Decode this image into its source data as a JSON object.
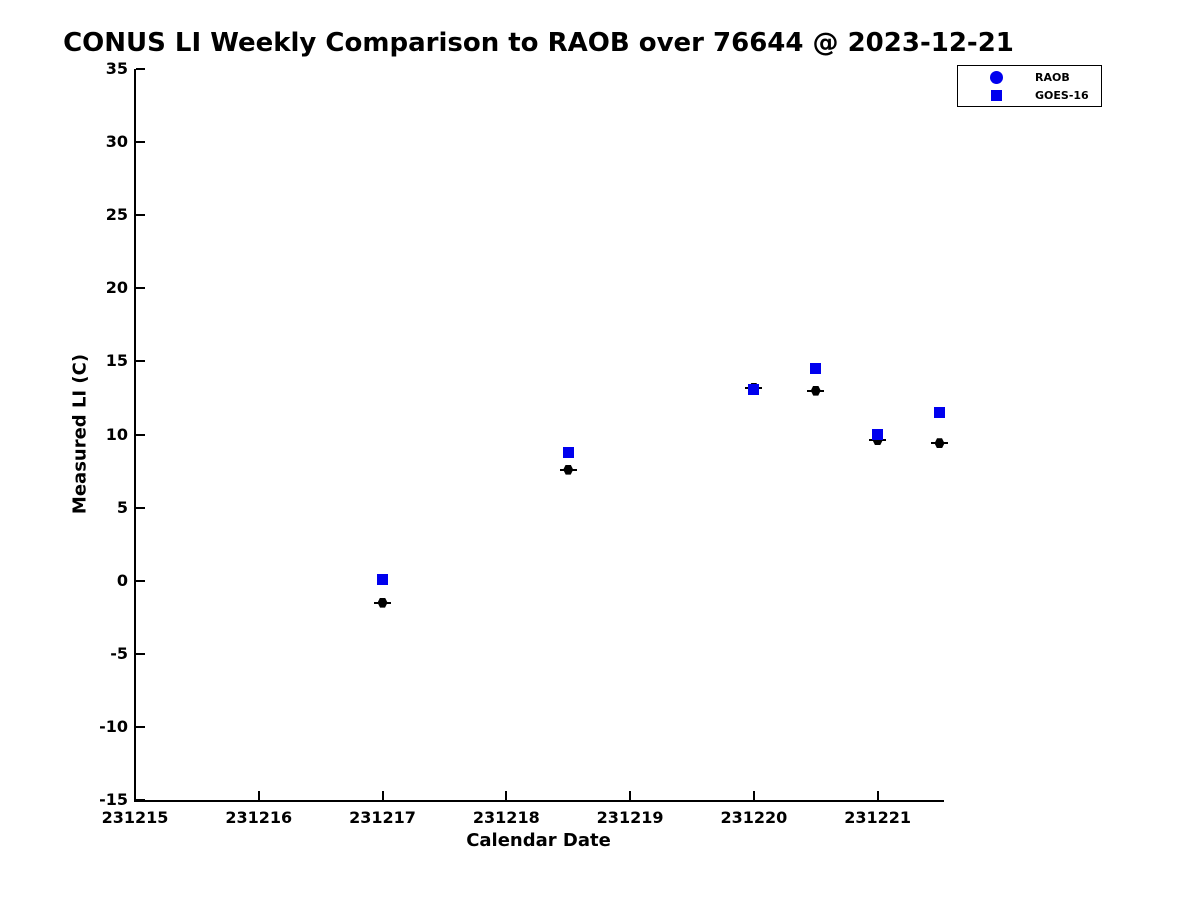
{
  "chart_data": {
    "type": "scatter",
    "title": "CONUS LI Weekly Comparison to RAOB over 76644 @ 2023-12-21",
    "xlabel": "Calendar Date",
    "ylabel": "Measured LI (C)",
    "xlim": [
      231215,
      231221.52
    ],
    "ylim": [
      -15,
      35
    ],
    "x_ticks": [
      231215,
      231216,
      231217,
      231218,
      231219,
      231220,
      231221
    ],
    "y_ticks": [
      -15,
      -10,
      -5,
      0,
      5,
      10,
      15,
      20,
      25,
      30,
      35
    ],
    "x": [
      231217,
      231218.5,
      231220,
      231220.5,
      231221,
      231221.5
    ],
    "series": [
      {
        "name": "RAOB",
        "marker": "hexagon",
        "plot_color": "#000000",
        "legend_color": "#0000ee",
        "values": [
          -1.5,
          7.6,
          13.2,
          13.0,
          9.6,
          9.4
        ]
      },
      {
        "name": "GOES-16",
        "marker": "square",
        "plot_color": "#0000ee",
        "legend_color": "#0000ee",
        "values": [
          0.1,
          8.8,
          13.1,
          14.5,
          10.0,
          11.5
        ]
      }
    ],
    "legend_position": "top-right",
    "grid": false
  },
  "colors": {
    "background": "#ffffff",
    "axis": "#000000",
    "marker_blue": "#0000ee",
    "marker_black": "#000000"
  }
}
